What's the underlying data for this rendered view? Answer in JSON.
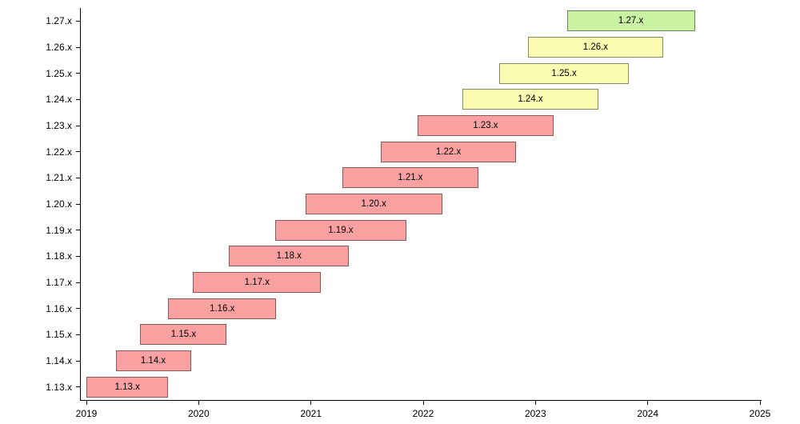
{
  "chart_data": {
    "type": "bar",
    "subtype": "gantt",
    "title": "",
    "xlabel": "",
    "ylabel": "",
    "xlim": [
      2019,
      2025
    ],
    "x_tick_labels": [
      "2019",
      "2020",
      "2021",
      "2022",
      "2023",
      "2024",
      "2025"
    ],
    "grid": false,
    "legend_position": "none",
    "axis_color": "#000000",
    "bar_border_color": "rgba(0,0,0,0.45)",
    "status_colors": {
      "end_of_life": "#f9a1a1",
      "maintenance": "#fbfbb1",
      "latest": "#c9f2a2"
    },
    "rows": [
      {
        "label": "1.27.x",
        "start": 2023.28,
        "end": 2024.42,
        "status": "latest"
      },
      {
        "label": "1.26.x",
        "start": 2022.93,
        "end": 2024.14,
        "status": "maintenance"
      },
      {
        "label": "1.25.x",
        "start": 2022.68,
        "end": 2023.83,
        "status": "maintenance"
      },
      {
        "label": "1.24.x",
        "start": 2022.35,
        "end": 2023.56,
        "status": "maintenance"
      },
      {
        "label": "1.23.x",
        "start": 2021.95,
        "end": 2023.16,
        "status": "end_of_life"
      },
      {
        "label": "1.22.x",
        "start": 2021.62,
        "end": 2022.83,
        "status": "end_of_life"
      },
      {
        "label": "1.21.x",
        "start": 2021.28,
        "end": 2022.49,
        "status": "end_of_life"
      },
      {
        "label": "1.20.x",
        "start": 2020.95,
        "end": 2022.17,
        "status": "end_of_life"
      },
      {
        "label": "1.19.x",
        "start": 2020.68,
        "end": 2021.85,
        "status": "end_of_life"
      },
      {
        "label": "1.18.x",
        "start": 2020.27,
        "end": 2021.34,
        "status": "end_of_life"
      },
      {
        "label": "1.17.x",
        "start": 2019.95,
        "end": 2021.09,
        "status": "end_of_life"
      },
      {
        "label": "1.16.x",
        "start": 2019.73,
        "end": 2020.69,
        "status": "end_of_life"
      },
      {
        "label": "1.15.x",
        "start": 2019.48,
        "end": 2020.25,
        "status": "end_of_life"
      },
      {
        "label": "1.14.x",
        "start": 2019.26,
        "end": 2019.93,
        "status": "end_of_life"
      },
      {
        "label": "1.13.x",
        "start": 2019.0,
        "end": 2019.73,
        "status": "end_of_life"
      }
    ]
  }
}
